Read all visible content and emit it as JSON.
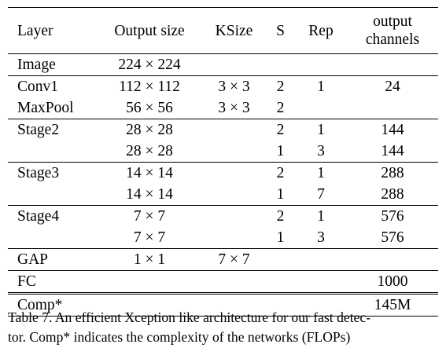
{
  "table": {
    "headers": {
      "layer": "Layer",
      "output_size": "Output size",
      "ksize": "KSize",
      "s": "S",
      "rep": "Rep",
      "channels_line1": "output",
      "channels_line2": "channels"
    },
    "rows": [
      {
        "layer": "Image",
        "output_size": "224 × 224",
        "ksize": "",
        "s": "",
        "rep": "",
        "channels": ""
      },
      {
        "layer": "Conv1",
        "output_size": "112 × 112",
        "ksize": "3 × 3",
        "s": "2",
        "rep": "1",
        "channels": "24"
      },
      {
        "layer": "MaxPool",
        "output_size": "56 × 56",
        "ksize": "3 × 3",
        "s": "2",
        "rep": "",
        "channels": ""
      },
      {
        "layer": "Stage2",
        "output_size": "28 × 28",
        "ksize": "",
        "s": "2",
        "rep": "1",
        "channels": "144"
      },
      {
        "layer": "",
        "output_size": "28 × 28",
        "ksize": "",
        "s": "1",
        "rep": "3",
        "channels": "144"
      },
      {
        "layer": "Stage3",
        "output_size": "14 × 14",
        "ksize": "",
        "s": "2",
        "rep": "1",
        "channels": "288"
      },
      {
        "layer": "",
        "output_size": "14 × 14",
        "ksize": "",
        "s": "1",
        "rep": "7",
        "channels": "288"
      },
      {
        "layer": "Stage4",
        "output_size": "7 × 7",
        "ksize": "",
        "s": "2",
        "rep": "1",
        "channels": "576"
      },
      {
        "layer": "",
        "output_size": "7 × 7",
        "ksize": "",
        "s": "1",
        "rep": "3",
        "channels": "576"
      },
      {
        "layer": "GAP",
        "output_size": "1 × 1",
        "ksize": "7 × 7",
        "s": "",
        "rep": "",
        "channels": ""
      },
      {
        "layer": "FC",
        "output_size": "",
        "ksize": "",
        "s": "",
        "rep": "",
        "channels": "1000"
      },
      {
        "layer": "Comp*",
        "output_size": "",
        "ksize": "",
        "s": "",
        "rep": "",
        "channels": "145M"
      }
    ]
  },
  "caption": {
    "line1": "Table 7. An efficient Xception like architecture for our fast detec-",
    "line2": "tor. Comp* indicates the complexity of the networks (FLOPs)"
  }
}
